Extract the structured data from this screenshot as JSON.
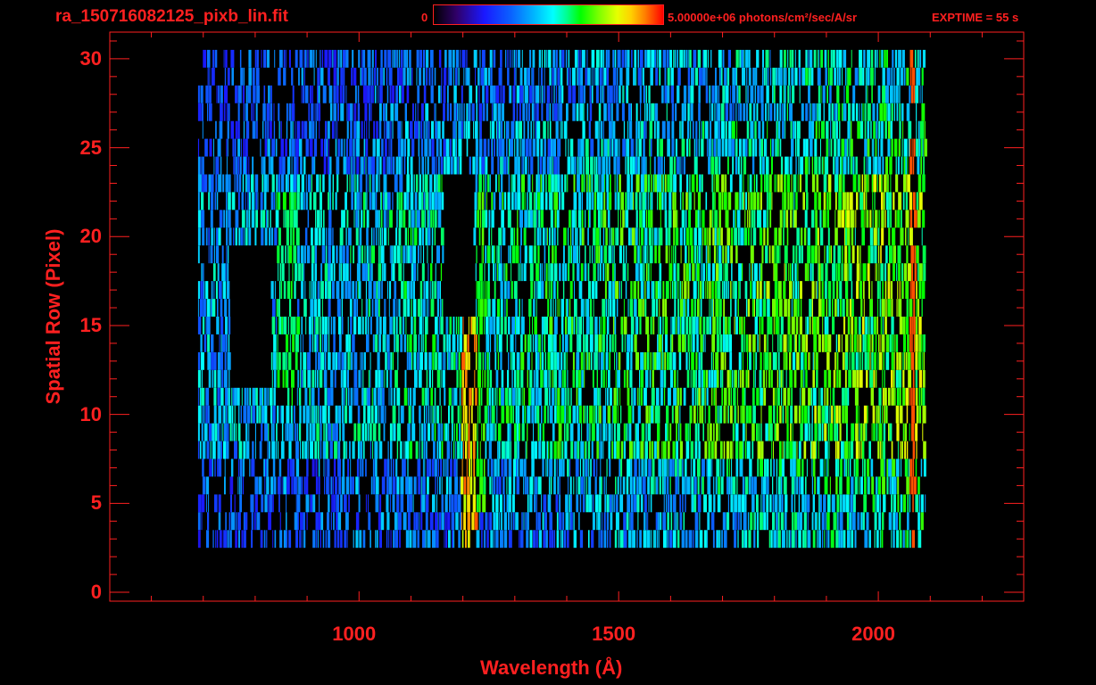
{
  "header": {
    "file_title": "ra_150716082125_pixb_lin.fit",
    "colorbar_min": "0",
    "colorbar_max": "5.00000e+06 photons/cm²/sec/A/sr",
    "exptime": "EXPTIME = 55 s"
  },
  "colors": {
    "axis": "#ff2020",
    "background": "#000000"
  },
  "chart_data": {
    "type": "heatmap",
    "title": "ra_150716082125_pixb_lin.fit",
    "xlabel": "Wavelength (Å)",
    "ylabel": "Spatial Row (Pixel)",
    "xlim": [
      520,
      2280
    ],
    "ylim": [
      -0.5,
      31.5
    ],
    "x_ticks": [
      1000,
      1500,
      2000
    ],
    "y_ticks": [
      0,
      5,
      10,
      15,
      20,
      25,
      30
    ],
    "colorbar": {
      "min": 0,
      "max": 5000000,
      "units": "photons/cm²/sec/A/sr"
    },
    "exptime_s": 55,
    "grid": false
  }
}
